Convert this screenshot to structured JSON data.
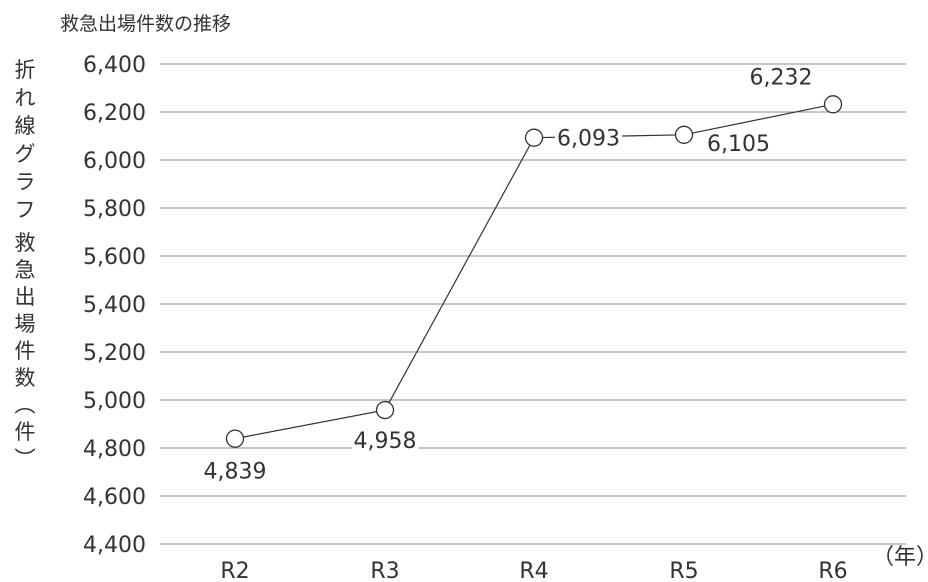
{
  "chart_data": {
    "type": "line",
    "title": "救急出場件数の推移",
    "ylabel_main": "折れ線グラフ",
    "ylabel_sub": "救急出場件数（件）",
    "xunit": "（年）",
    "categories": [
      "R2",
      "R3",
      "R4",
      "R5",
      "R6"
    ],
    "series": [
      {
        "values": [
          4839,
          4958,
          6093,
          6105,
          6232
        ]
      }
    ],
    "data_labels": [
      "4,839",
      "4,958",
      "6,093",
      "6,105",
      "6,232"
    ],
    "yticks": [
      "4,400",
      "4,600",
      "4,800",
      "5,000",
      "5,200",
      "5,400",
      "5,600",
      "5,800",
      "6,000",
      "6,200",
      "6,400"
    ],
    "ylim": [
      4400,
      6400
    ],
    "grid": true,
    "legend": "none",
    "colors": {
      "line": "#333333",
      "grid": "#8c8c8c",
      "marker_fill": "#ffffff"
    }
  }
}
